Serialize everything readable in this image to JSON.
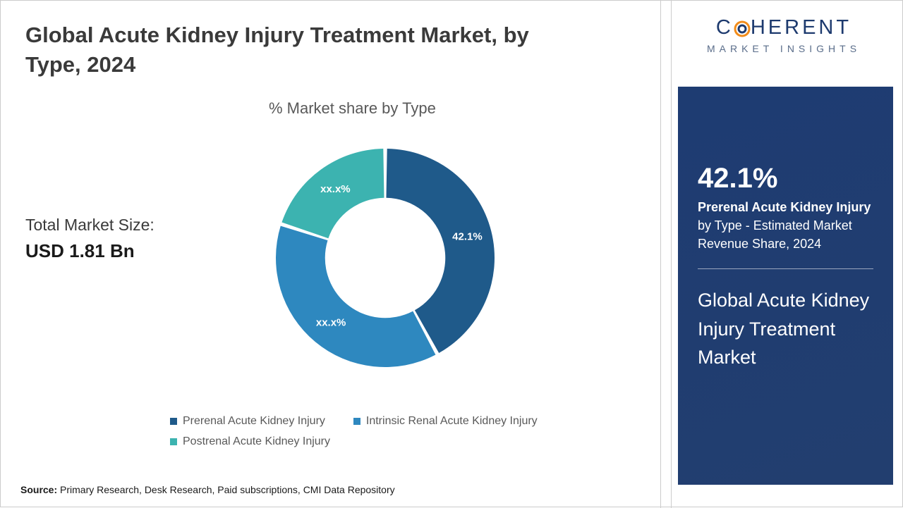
{
  "header": {
    "title": "Global Acute Kidney Injury Treatment Market, by Type, 2024"
  },
  "chart": {
    "type": "donut",
    "subtitle": "% Market share by Type",
    "inner_radius_ratio": 0.55,
    "background_color": "#ffffff",
    "slice_gap_deg": 2,
    "series": [
      {
        "name": "Prerenal Acute Kidney Injury",
        "value": 42.1,
        "label": "42.1%",
        "color": "#1f5a8a",
        "label_color": "#ffffff"
      },
      {
        "name": "Intrinsic Renal Acute Kidney Injury",
        "value": 37.9,
        "label": "xx.x%",
        "color": "#2e88bf",
        "label_color": "#ffffff"
      },
      {
        "name": "Postrenal Acute Kidney Injury",
        "value": 20.0,
        "label": "xx.x%",
        "color": "#3cb3b0",
        "label_color": "#ffffff"
      }
    ],
    "label_fontsize": 15,
    "label_fontweight": 600
  },
  "market_size": {
    "label": "Total Market Size:",
    "value": "USD 1.81 Bn"
  },
  "legend": {
    "fontsize": 16,
    "text_color": "#595959",
    "swatch_size": 10
  },
  "source": {
    "prefix": "Source:",
    "text": "Primary Research, Desk Research, Paid subscriptions, CMI Data Repository"
  },
  "logo": {
    "brand_main_pre": "C",
    "brand_main_post": "HERENT",
    "brand_sub": "MARKET INSIGHTS",
    "ring_outer_color": "#f28c1a",
    "ring_inner_color": "#1d3a6e",
    "text_color": "#1d3a6e"
  },
  "side_panel": {
    "background_color": "#1e3c72",
    "text_color": "#ffffff",
    "stat_value": "42.1%",
    "stat_bold": "Prerenal Acute Kidney Injury",
    "stat_rest": " by Type - Estimated Market Revenue Share, 2024",
    "panel_title": "Global Acute Kidney Injury Treatment Market"
  }
}
